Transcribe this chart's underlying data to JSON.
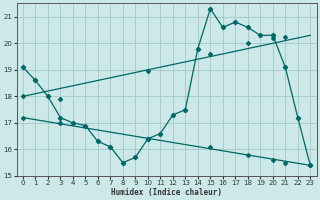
{
  "background_color": "#cce8e8",
  "grid_color": "#aacccc",
  "line_color": "#006666",
  "xlabel": "Humidex (Indice chaleur)",
  "xlim": [
    -0.5,
    23.5
  ],
  "ylim": [
    15.0,
    21.5
  ],
  "yticks": [
    15,
    16,
    17,
    18,
    19,
    20,
    21
  ],
  "xticks": [
    0,
    1,
    2,
    3,
    4,
    5,
    6,
    7,
    8,
    9,
    10,
    11,
    12,
    13,
    14,
    15,
    16,
    17,
    18,
    19,
    20,
    21,
    22,
    23
  ],
  "series": [
    {
      "x": [
        0,
        1,
        2,
        3,
        4,
        5,
        6,
        7,
        8,
        9,
        10,
        11,
        12,
        13,
        14,
        15,
        16,
        17,
        18,
        19,
        20,
        21,
        22,
        23
      ],
      "y": [
        19.1,
        18.6,
        18.0,
        17.2,
        17.0,
        16.9,
        16.3,
        16.1,
        15.5,
        15.7,
        16.4,
        16.6,
        17.3,
        17.5,
        19.8,
        21.3,
        20.6,
        20.8,
        20.6,
        20.3,
        20.3,
        19.1,
        17.2,
        15.4
      ]
    },
    {
      "x": [
        0,
        23
      ],
      "y": [
        18.0,
        20.3
      ],
      "markers_x": [
        0,
        3,
        10,
        15,
        18,
        20,
        21
      ],
      "markers_y": [
        18.0,
        17.9,
        18.95,
        19.6,
        20.0,
        20.2,
        20.25
      ]
    },
    {
      "x": [
        0,
        23
      ],
      "y": [
        17.2,
        15.4
      ],
      "markers_x": [
        0,
        3,
        10,
        15,
        18,
        20,
        21,
        23
      ],
      "markers_y": [
        17.2,
        17.0,
        16.4,
        16.1,
        15.8,
        15.6,
        15.5,
        15.4
      ]
    }
  ]
}
